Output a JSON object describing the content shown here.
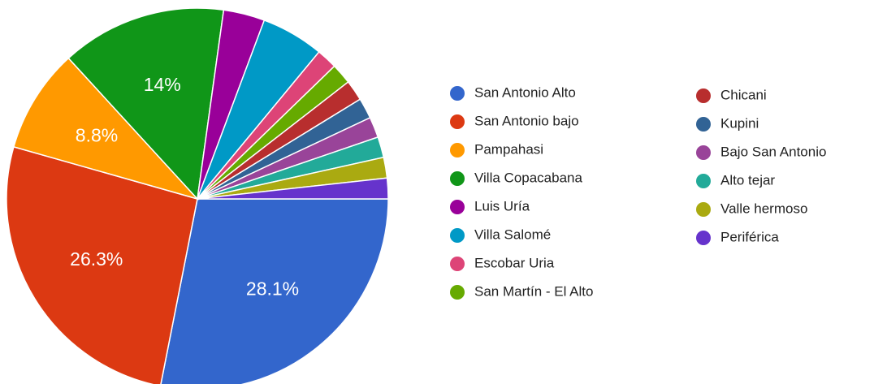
{
  "chart_data": {
    "type": "pie",
    "categories": [
      "San Antonio Alto",
      "San Antonio bajo",
      "Pampahasi",
      "Villa Copacabana",
      "Luis Uría",
      "Villa Salomé",
      "Escobar Uria",
      "San Martín - El Alto",
      "Chicani",
      "Kupini",
      "Bajo San Antonio",
      "Alto tejar",
      "Valle hermoso",
      "Periférica"
    ],
    "values": [
      28.1,
      26.3,
      8.8,
      14,
      3.5,
      5.3,
      1.75,
      1.75,
      1.75,
      1.75,
      1.75,
      1.75,
      1.75,
      1.75
    ],
    "value_labels": [
      "28.1%",
      "26.3%",
      "8.8%",
      "14%",
      null,
      null,
      null,
      null,
      null,
      null,
      null,
      null,
      null,
      null
    ],
    "colors": [
      "#3366cc",
      "#dc3912",
      "#ff9900",
      "#109618",
      "#990099",
      "#0099c6",
      "#dd4477",
      "#66aa00",
      "#b82e2e",
      "#316395",
      "#994499",
      "#22aa99",
      "#aaaa11",
      "#6633cc"
    ],
    "legend": "right"
  }
}
